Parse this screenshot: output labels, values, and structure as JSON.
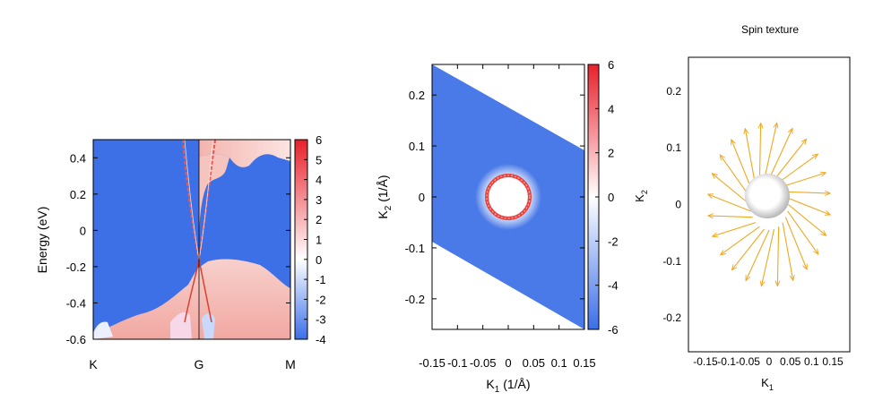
{
  "chart_data": [
    {
      "type": "heatmap",
      "xlabel": "",
      "ylabel": "Energy (eV)",
      "xtick_labels": [
        "K",
        "G",
        "M"
      ],
      "yticks": [
        0.4,
        0.2,
        0,
        -0.2,
        -0.4,
        -0.6
      ],
      "ytick_labels": [
        "0.4",
        "0.2",
        "0",
        "-0.2",
        "-0.4",
        "-0.6"
      ],
      "ylim": [
        -0.6,
        0.5
      ],
      "colorbar": {
        "ticks": [
          6,
          5,
          4,
          3,
          2,
          1,
          0,
          -1,
          -2,
          -3,
          -4
        ],
        "tick_labels": [
          "6",
          "5",
          "4",
          "3",
          "2",
          "1",
          "0",
          "-1",
          "-2",
          "-3",
          "-4"
        ],
        "range": [
          -4,
          6
        ]
      },
      "colors": {
        "low": "#3b6ee8",
        "mid": "#ffffff",
        "high": "#e8202a"
      }
    },
    {
      "type": "heatmap",
      "xlabel": "K1 (1/Å)",
      "xlabel_main": "K",
      "xlabel_sub": "1",
      "xlabel_unit": " (1/Å)",
      "ylabel": "K2 (1/Å)",
      "ylabel_main": "K",
      "ylabel_sub": "2",
      "ylabel_unit": " (1/Å)",
      "xticks": [
        -0.15,
        -0.1,
        -0.05,
        0,
        0.05,
        0.1,
        0.15
      ],
      "xtick_labels": [
        "-0.15",
        "-0.1",
        "-0.05",
        "0",
        "0.05",
        "0.1",
        "0.15"
      ],
      "yticks": [
        0.2,
        0.1,
        0,
        -0.1,
        -0.2
      ],
      "ytick_labels": [
        "0.2",
        "0.1",
        "0",
        "-0.1",
        "-0.2"
      ],
      "xlim": [
        -0.15,
        0.15
      ],
      "ylim": [
        -0.26,
        0.26
      ],
      "ring_radius": 0.045,
      "colorbar": {
        "ticks": [
          6,
          4,
          2,
          0,
          -2,
          -4,
          -6
        ],
        "tick_labels": [
          "6",
          "4",
          "2",
          "0",
          "-2",
          "-4",
          "-6"
        ],
        "range": [
          -6,
          6
        ]
      },
      "colors": {
        "fill": "#4a7ae8",
        "ring": "#e8403a"
      }
    },
    {
      "type": "scatter",
      "title": "Spin texture",
      "xlabel": "K1",
      "xlabel_main": "K",
      "xlabel_sub": "1",
      "ylabel": "K2",
      "ylabel_main": "K",
      "ylabel_sub": "2",
      "xticks": [
        -0.15,
        -0.1,
        -0.05,
        0,
        0.05,
        0.1,
        0.15
      ],
      "xtick_labels": [
        "-0.15",
        "-0.1",
        "-0.05",
        "0",
        "0.05",
        "0.1",
        "0.15"
      ],
      "yticks": [
        0.2,
        0.1,
        0,
        -0.1,
        -0.2
      ],
      "ytick_labels": [
        "0.2",
        "0.1",
        "0",
        "-0.1",
        "-0.2"
      ],
      "xlim": [
        -0.19,
        0.19
      ],
      "ylim": [
        -0.26,
        0.26
      ],
      "circle_radius": 0.045,
      "arrow_length": 0.105,
      "arrow_count": 24,
      "colors": {
        "arrow": "#f0a820",
        "circle": "#9a9a9a"
      }
    }
  ]
}
